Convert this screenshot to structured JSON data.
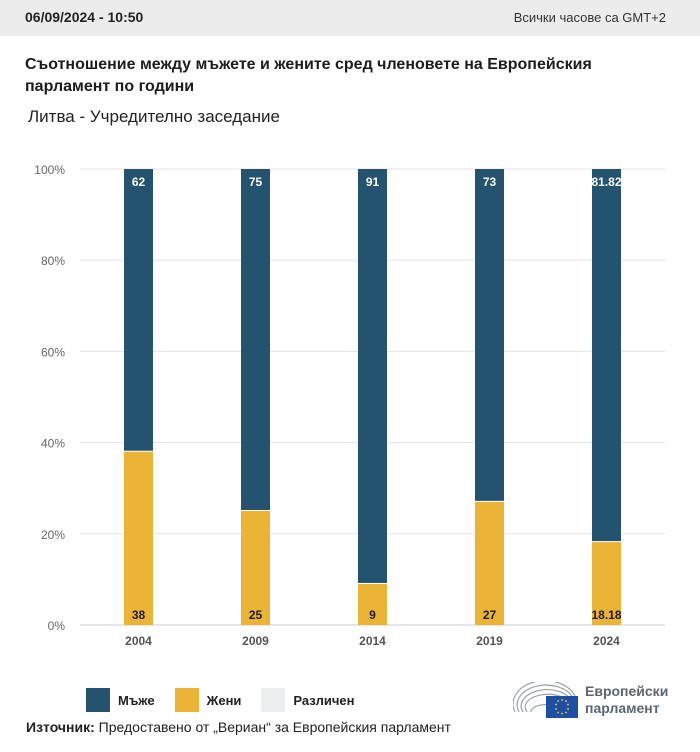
{
  "header": {
    "datetime": "06/09/2024 - 10:50",
    "timezone": "Всички часове са GMT+2"
  },
  "title": "Съотношение между мъжете и жените сред членовете на Европейския парламент по години",
  "subtitle": "Литва - Учредително заседание",
  "colors": {
    "men": "#24536f",
    "women": "#ebb434",
    "other": "#eceeef",
    "grid": "#e3e3e3"
  },
  "chart_data": {
    "type": "bar",
    "stacked": true,
    "title": "Съотношение между мъжете и жените сред членовете на Европейския парламент по години",
    "subtitle": "Литва - Учредително заседание",
    "categories": [
      "2004",
      "2009",
      "2014",
      "2019",
      "2024"
    ],
    "series": [
      {
        "name": "Жени",
        "key": "women",
        "values": [
          38,
          25,
          9,
          27,
          18.18
        ],
        "labels": [
          "38",
          "25",
          "9",
          "27",
          "18.18"
        ]
      },
      {
        "name": "Мъже",
        "key": "men",
        "values": [
          62,
          75,
          91,
          73,
          81.82
        ],
        "labels": [
          "62",
          "75",
          "91",
          "73",
          "81.82"
        ]
      },
      {
        "name": "Различен",
        "key": "other",
        "values": [
          0,
          0,
          0,
          0,
          0
        ]
      }
    ],
    "yticks": [
      "0%",
      "20%",
      "40%",
      "60%",
      "80%",
      "100%"
    ],
    "ylim": [
      0,
      100
    ],
    "xlabel": "",
    "ylabel": "",
    "grid": true,
    "legend_position": "bottom-left"
  },
  "legend": [
    {
      "label": "Мъже",
      "key": "men"
    },
    {
      "label": "Жени",
      "key": "women"
    },
    {
      "label": "Различен",
      "key": "other"
    }
  ],
  "source": {
    "label": "Източник:",
    "text": " Предоставено от „Вериан“ за Европейския парламент"
  },
  "logo": {
    "line1": "Европейски",
    "line2": "парламент"
  }
}
